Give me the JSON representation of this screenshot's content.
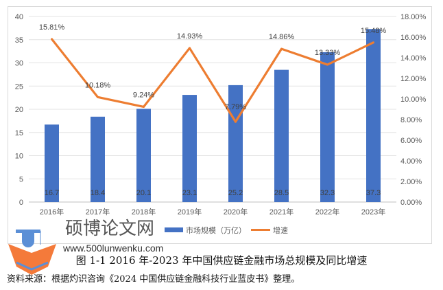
{
  "chart_data": {
    "type": "bar+line",
    "categories": [
      "2016年",
      "2017年",
      "2018年",
      "2019年",
      "2020年",
      "2021年",
      "2022年",
      "2023年"
    ],
    "series": [
      {
        "name": "市场规模（万亿）",
        "type": "bar",
        "axis": "left",
        "values": [
          16.7,
          18.4,
          20.1,
          23.1,
          25.2,
          28.5,
          32.3,
          37.3
        ],
        "labels": [
          "16.7",
          "18.4",
          "20.1",
          "23.1",
          "25.2",
          "28.5",
          "32.3",
          "37.3"
        ],
        "color": "#4472c4"
      },
      {
        "name": "增速",
        "type": "line",
        "axis": "right",
        "values": [
          15.81,
          10.18,
          9.24,
          14.93,
          7.79,
          14.86,
          13.33,
          15.48
        ],
        "labels": [
          "15.81%",
          "10.18%",
          "9.24%",
          "14.93%",
          "7.79%",
          "14.86%",
          "13.33%",
          "15.48%"
        ],
        "color": "#ed7d31"
      }
    ],
    "y_left": {
      "range": [
        0,
        40
      ],
      "ticks": [
        "0",
        "5",
        "10",
        "15",
        "20",
        "25",
        "30",
        "35",
        "40"
      ]
    },
    "y_right": {
      "range": [
        0,
        18
      ],
      "ticks": [
        "0.00%",
        "2.00%",
        "4.00%",
        "6.00%",
        "8.00%",
        "10.00%",
        "12.00%",
        "14.00%",
        "16.00%",
        "18.00%"
      ]
    },
    "grid": true,
    "legend_position": "bottom"
  },
  "caption": "图 1-1 2016 年-2023 年中国供应链金融市场总规模及同比增速",
  "source": "资料来源：根据灼识咨询《2024 中国供应链金融科技行业蓝皮书》整理。",
  "watermark": {
    "title": "硕博论文网",
    "url": "www.500lunwenku.com"
  }
}
